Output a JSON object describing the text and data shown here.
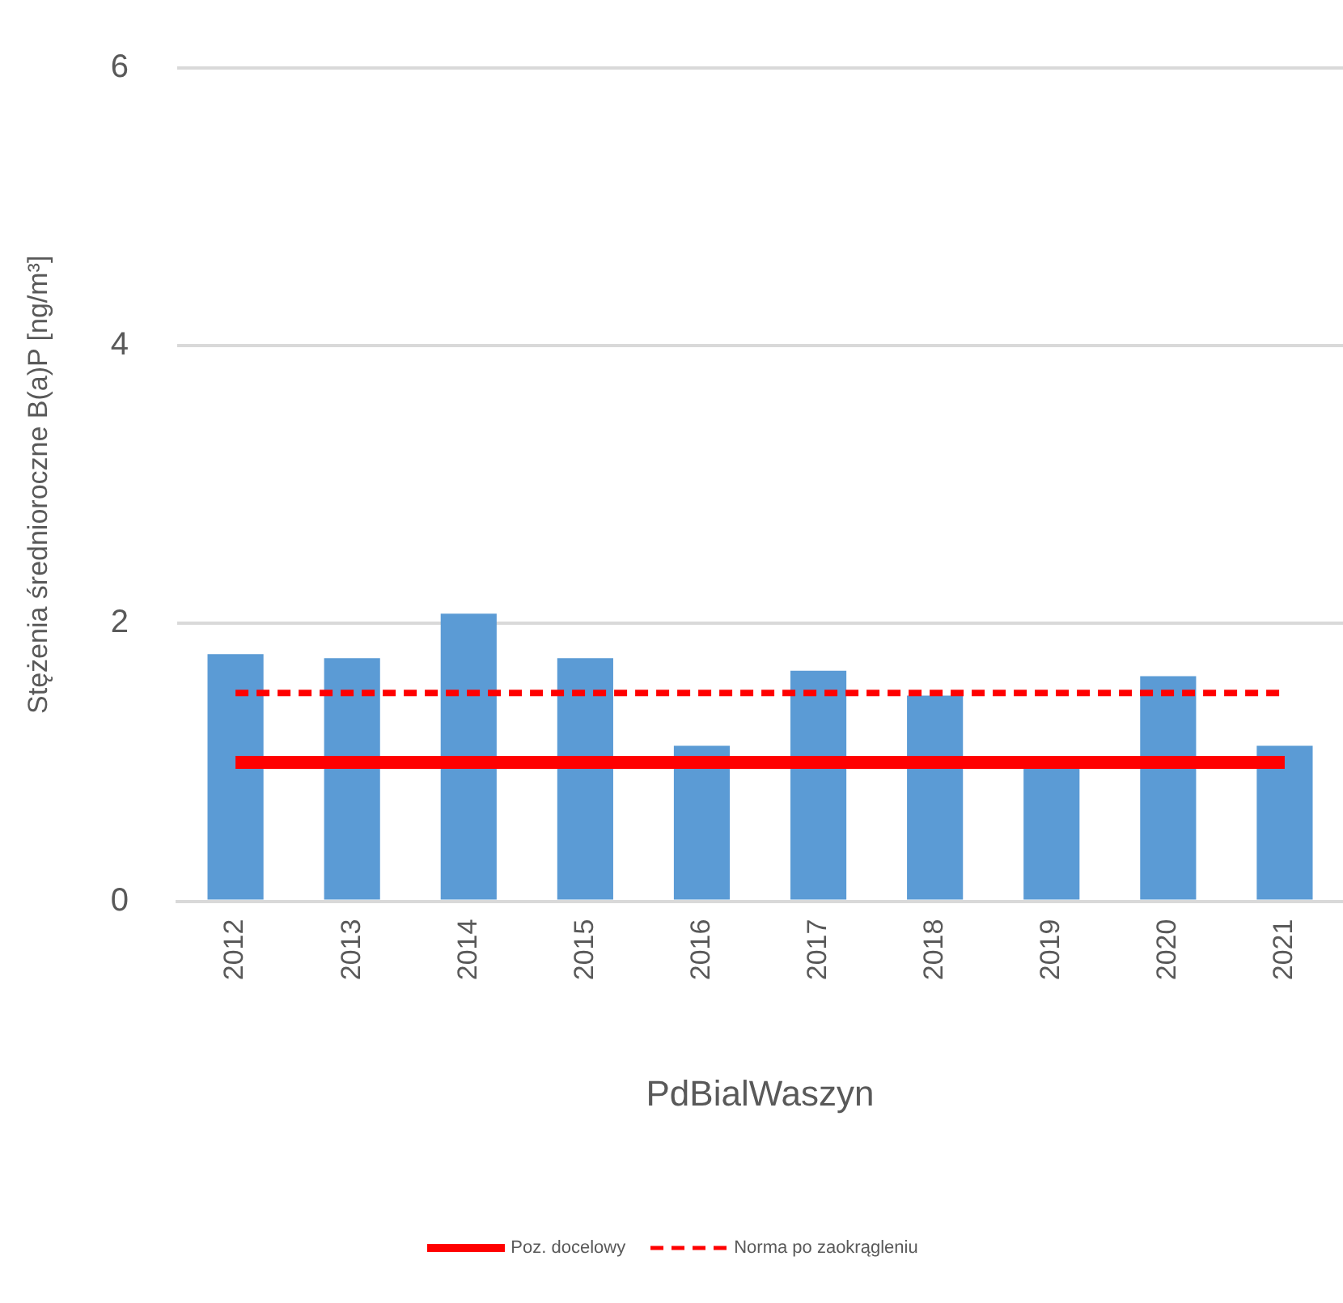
{
  "chart_data": {
    "type": "bar",
    "xlabel": "PdBialWaszyn",
    "ylabel": "Stężenia średnioroczne B(a)P [ng/m³]",
    "categories": [
      "2012",
      "2013",
      "2014",
      "2015",
      "2016",
      "2017",
      "2018",
      "2019",
      "2020",
      "2021"
    ],
    "series": [
      {
        "color": "#5b9bd5",
        "values": [
          1.78,
          1.75,
          2.07,
          1.75,
          1.12,
          1.66,
          1.48,
          0.97,
          1.62,
          1.12
        ]
      },
      {
        "type": "line",
        "name": "Poz. docelowy",
        "color": "#ff0000",
        "line_style": "solid",
        "values": [
          1,
          1,
          1,
          1,
          1,
          1,
          1,
          1,
          1,
          1
        ]
      },
      {
        "type": "line",
        "name": "Norma po zaokrągleniu",
        "color": "#ff0000",
        "line_style": "dashed",
        "values": [
          1.5,
          1.5,
          1.5,
          1.5,
          1.5,
          1.5,
          1.5,
          1.5,
          1.5,
          1.5
        ]
      }
    ],
    "ylim": [
      0,
      6
    ],
    "yticks": [
      0,
      2,
      4,
      6
    ],
    "grid": "y",
    "legend": "bottom",
    "marker": "none"
  }
}
